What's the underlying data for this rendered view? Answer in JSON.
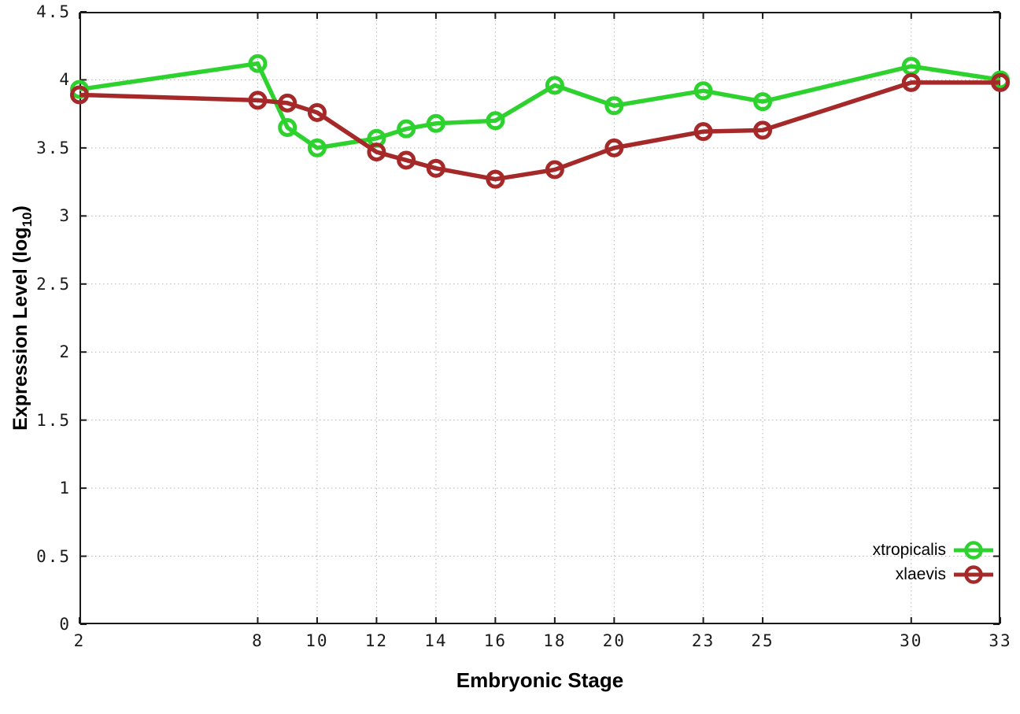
{
  "chart_data": {
    "type": "line",
    "title": "",
    "xlabel": "Embryonic Stage",
    "ylabel": "Expression Level (log10)",
    "ylabel_parts": {
      "main": "Expression Level (log",
      "sub": "10",
      "close": ")"
    },
    "x": [
      2,
      8,
      9,
      10,
      12,
      13,
      14,
      16,
      18,
      20,
      23,
      25,
      30,
      33
    ],
    "xlim": [
      2,
      33
    ],
    "ylim": [
      0,
      4.5
    ],
    "xticks": [
      2,
      8,
      10,
      12,
      14,
      16,
      18,
      20,
      23,
      25,
      30,
      33
    ],
    "yticks": [
      0,
      0.5,
      1,
      1.5,
      2,
      2.5,
      3,
      3.5,
      4,
      4.5
    ],
    "ytick_labels": [
      "0",
      "0.5",
      "1",
      "1.5",
      "2",
      "2.5",
      "3",
      "3.5",
      "4",
      "4.5"
    ],
    "grid": true,
    "legend_position": "bottom-right",
    "series": [
      {
        "name": "xtropicalis",
        "color": "#2ed22e",
        "values": [
          3.93,
          4.12,
          3.65,
          3.5,
          3.57,
          3.64,
          3.68,
          3.7,
          3.96,
          3.81,
          3.92,
          3.84,
          4.1,
          4.0
        ]
      },
      {
        "name": "xlaevis",
        "color": "#a62929",
        "values": [
          3.89,
          3.85,
          3.83,
          3.76,
          3.47,
          3.41,
          3.35,
          3.27,
          3.34,
          3.5,
          3.62,
          3.63,
          3.98,
          3.98
        ]
      }
    ],
    "axis_color": "#1a1a1a",
    "grid_color": "#b5b5b5"
  }
}
